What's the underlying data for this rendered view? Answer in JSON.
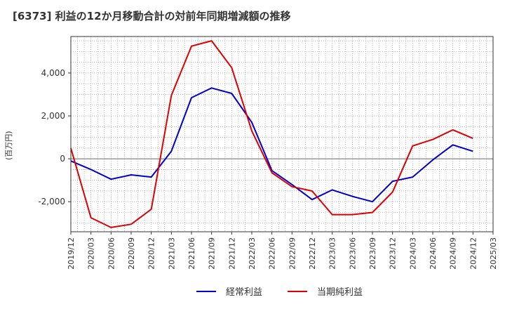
{
  "chart_data": {
    "type": "line",
    "title": "[6373]  利益の12か月移動合計の対前年同期増減額の推移",
    "ylabel": "(百万円)",
    "xlabel": "",
    "ylim": [
      -3400,
      5700
    ],
    "yticks": [
      -2000,
      0,
      2000,
      4000
    ],
    "ytick_labels": [
      "-2,000",
      "0",
      "2,000",
      "4,000"
    ],
    "categories": [
      "2019/12",
      "2020/03",
      "2020/06",
      "2020/09",
      "2020/12",
      "2021/03",
      "2021/06",
      "2021/09",
      "2021/12",
      "2022/03",
      "2022/06",
      "2022/09",
      "2022/12",
      "2023/03",
      "2023/06",
      "2023/09",
      "2023/12",
      "2024/03",
      "2024/06",
      "2024/09",
      "2024/12",
      "2025/03"
    ],
    "series": [
      {
        "name": "経常利益",
        "color": "#0000cc",
        "values": [
          -100,
          -500,
          -950,
          -750,
          -850,
          350,
          2850,
          3300,
          3050,
          1700,
          -550,
          -1200,
          -1900,
          -1450,
          -1750,
          -2000,
          -1050,
          -850,
          -50,
          650,
          350,
          null
        ]
      },
      {
        "name": "当期純利益",
        "color": "#dd0000",
        "values": [
          500,
          -2750,
          -3200,
          -3050,
          -2350,
          2950,
          5250,
          5500,
          4250,
          1300,
          -650,
          -1300,
          -1500,
          -2600,
          -2600,
          -2500,
          -1550,
          600,
          900,
          1350,
          950,
          null
        ]
      }
    ],
    "legend_position": "bottom",
    "grid": true
  }
}
